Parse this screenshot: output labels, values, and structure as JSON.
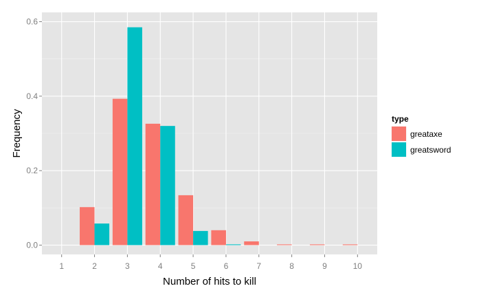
{
  "chart_data": {
    "type": "bar",
    "xlabel": "Number of hits to kill",
    "ylabel": "Frequency",
    "categories": [
      "1",
      "2",
      "3",
      "4",
      "5",
      "6",
      "7",
      "8",
      "9",
      "10"
    ],
    "ylim": [
      -0.025,
      0.625
    ],
    "yticks": [
      "0.0",
      "0.2",
      "0.4",
      "0.6"
    ],
    "grid": true,
    "legend": {
      "title": "type",
      "position": "right"
    },
    "series": [
      {
        "name": "greataxe",
        "color": "#F8766D",
        "values": [
          0,
          0.102,
          0.393,
          0.326,
          0.134,
          0.04,
          0.01,
          0.002,
          0.002,
          0.002
        ]
      },
      {
        "name": "greatsword",
        "color": "#00BFC4",
        "values": [
          0,
          0.058,
          0.585,
          0.32,
          0.038,
          0.002,
          0,
          0,
          0,
          0
        ]
      }
    ]
  }
}
